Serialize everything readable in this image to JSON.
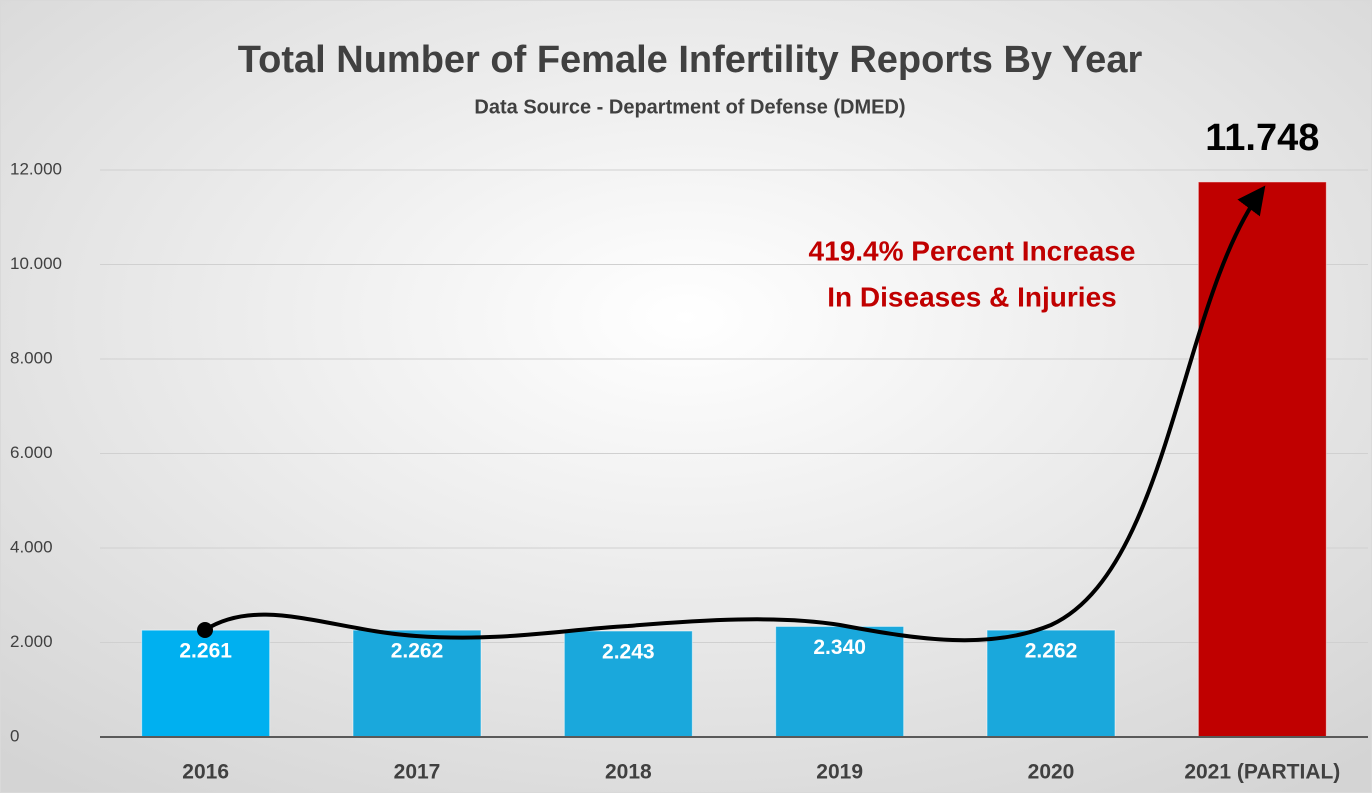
{
  "chart_data": {
    "type": "bar",
    "title": "Total Number of Female Infertility Reports By Year",
    "subtitle": "Data Source - Department of Defense (DMED)",
    "annotation": [
      "419.4% Percent Increase",
      "In Diseases & Injuries"
    ],
    "categories": [
      "2016",
      "2017",
      "2018",
      "2019",
      "2020",
      "2021 (PARTIAL)"
    ],
    "values": [
      2261,
      2262,
      2243,
      2340,
      2262,
      11748
    ],
    "value_labels": [
      "2.261",
      "2.262",
      "2.243",
      "2.340",
      "2.262",
      "11.748"
    ],
    "colors": [
      "#00b0f0",
      "#1aa8dc",
      "#1aa8dc",
      "#1aa8dc",
      "#1aa8dc",
      "#c00000"
    ],
    "ylim": [
      0,
      12000
    ],
    "yticks": [
      0,
      {
        "value": 2000,
        "label": "2.000"
      },
      {
        "value": 4000,
        "label": "4.000"
      },
      {
        "value": 6000,
        "label": "6.000"
      },
      {
        "value": 8000,
        "label": "8.000"
      },
      {
        "value": 10000,
        "label": "10.000"
      },
      {
        "value": 12000,
        "label": "12.000"
      }
    ],
    "grid": true
  }
}
